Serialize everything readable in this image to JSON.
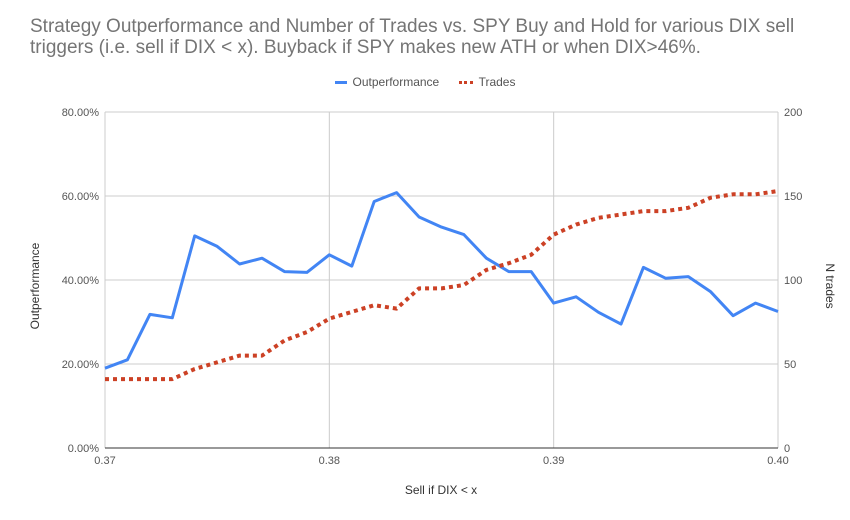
{
  "colors": {
    "outperformance": "#4285f4",
    "trades": "#cc4125",
    "grid": "#cccccc",
    "axis": "#333333",
    "text": "#555555"
  },
  "chart_data": {
    "type": "line",
    "title": "Strategy Outperformance and Number of Trades vs. SPY Buy and Hold for various DIX sell triggers (i.e. sell if DIX < x). Buyback if SPY makes new ATH or when DIX>46%.",
    "xlabel": "Sell if DIX < x",
    "ylabel_left": "Outperformance",
    "ylabel_right": "N trades",
    "xlim": [
      0.37,
      0.4
    ],
    "ylim_left": [
      0,
      80
    ],
    "ylim_right": [
      0,
      200
    ],
    "x_ticks": [
      "0.37",
      "0.38",
      "0.39",
      "0.40"
    ],
    "x_tick_values": [
      0.37,
      0.38,
      0.39,
      0.4
    ],
    "y_left_ticks": [
      "0.00%",
      "20.00%",
      "40.00%",
      "60.00%",
      "80.00%"
    ],
    "y_left_tick_values": [
      0,
      20,
      40,
      60,
      80
    ],
    "y_right_ticks": [
      "0",
      "50",
      "100",
      "150",
      "200"
    ],
    "y_right_tick_values": [
      0,
      50,
      100,
      150,
      200
    ],
    "grid": true,
    "legend_position": "top",
    "x": [
      0.37,
      0.371,
      0.372,
      0.373,
      0.374,
      0.375,
      0.376,
      0.377,
      0.378,
      0.379,
      0.38,
      0.381,
      0.382,
      0.383,
      0.384,
      0.385,
      0.386,
      0.387,
      0.388,
      0.389,
      0.39,
      0.391,
      0.392,
      0.393,
      0.394,
      0.395,
      0.396,
      0.397,
      0.398,
      0.399,
      0.4
    ],
    "series": [
      {
        "name": "Outperformance",
        "axis": "left",
        "style": "solid",
        "values": [
          19.0,
          21.0,
          31.8,
          31.0,
          50.5,
          48.0,
          43.8,
          45.2,
          42.0,
          41.8,
          46.0,
          43.3,
          58.7,
          60.8,
          55.0,
          52.6,
          50.8,
          45.2,
          42.0,
          42.0,
          34.5,
          36.0,
          32.3,
          29.5,
          43.0,
          40.4,
          40.8,
          37.2,
          31.5,
          34.5,
          32.5
        ]
      },
      {
        "name": "Trades",
        "axis": "right",
        "style": "dotted",
        "values": [
          41,
          41,
          41,
          41,
          47,
          51,
          55,
          55,
          64,
          69,
          77,
          81,
          85,
          83,
          95,
          95,
          97,
          106,
          110,
          115,
          127,
          133,
          137,
          139,
          141,
          141,
          143,
          149,
          151,
          151,
          153
        ]
      }
    ]
  }
}
